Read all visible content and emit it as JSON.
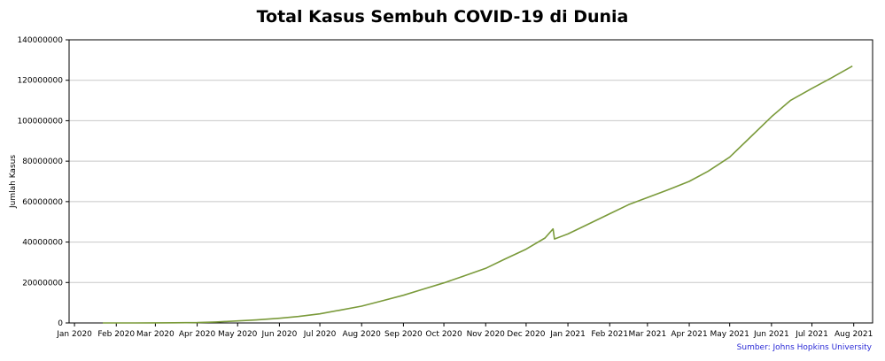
{
  "chart_data": {
    "type": "line",
    "title": "Total Kasus Sembuh COVID-19 di Dunia",
    "ylabel": "Jumlah Kasus",
    "xlabel": "",
    "source": "Sumber: Johns Hopkins University",
    "ylim": [
      0,
      140000000
    ],
    "yticks": [
      0,
      20000000,
      40000000,
      60000000,
      80000000,
      100000000,
      120000000,
      140000000
    ],
    "xlim": [
      "2019-12-28",
      "2021-08-15"
    ],
    "xticks": [
      {
        "date": "2020-01-01",
        "label": "Jan 2020"
      },
      {
        "date": "2020-02-01",
        "label": "Feb 2020"
      },
      {
        "date": "2020-03-01",
        "label": "Mar 2020"
      },
      {
        "date": "2020-04-01",
        "label": "Apr 2020"
      },
      {
        "date": "2020-05-01",
        "label": "May 2020"
      },
      {
        "date": "2020-06-01",
        "label": "Jun 2020"
      },
      {
        "date": "2020-07-01",
        "label": "Jul 2020"
      },
      {
        "date": "2020-08-01",
        "label": "Aug 2020"
      },
      {
        "date": "2020-09-01",
        "label": "Sep 2020"
      },
      {
        "date": "2020-10-01",
        "label": "Oct 2020"
      },
      {
        "date": "2020-11-01",
        "label": "Nov 2020"
      },
      {
        "date": "2020-12-01",
        "label": "Dec 2020"
      },
      {
        "date": "2021-01-01",
        "label": "Jan 2021"
      },
      {
        "date": "2021-02-01",
        "label": "Feb 2021"
      },
      {
        "date": "2021-03-01",
        "label": "Mar 2021"
      },
      {
        "date": "2021-04-01",
        "label": "Apr 2021"
      },
      {
        "date": "2021-05-01",
        "label": "May 2021"
      },
      {
        "date": "2021-06-01",
        "label": "Jun 2021"
      },
      {
        "date": "2021-07-01",
        "label": "Jul 2021"
      },
      {
        "date": "2021-08-01",
        "label": "Aug 2021"
      }
    ],
    "grid": "horizontal",
    "line_color": "#7a9a3a",
    "series": [
      {
        "values": [
          {
            "x": "2020-01-22",
            "y": 28
          },
          {
            "x": "2020-02-15",
            "y": 10000
          },
          {
            "x": "2020-03-01",
            "y": 45000
          },
          {
            "x": "2020-03-15",
            "y": 80000
          },
          {
            "x": "2020-04-01",
            "y": 190000
          },
          {
            "x": "2020-04-15",
            "y": 500000
          },
          {
            "x": "2020-05-01",
            "y": 1000000
          },
          {
            "x": "2020-05-15",
            "y": 1500000
          },
          {
            "x": "2020-06-01",
            "y": 2300000
          },
          {
            "x": "2020-06-15",
            "y": 3200000
          },
          {
            "x": "2020-07-01",
            "y": 4500000
          },
          {
            "x": "2020-07-15",
            "y": 6200000
          },
          {
            "x": "2020-08-01",
            "y": 8300000
          },
          {
            "x": "2020-08-15",
            "y": 10700000
          },
          {
            "x": "2020-09-01",
            "y": 13700000
          },
          {
            "x": "2020-09-15",
            "y": 16600000
          },
          {
            "x": "2020-10-01",
            "y": 19800000
          },
          {
            "x": "2020-10-15",
            "y": 23000000
          },
          {
            "x": "2020-11-01",
            "y": 27000000
          },
          {
            "x": "2020-11-15",
            "y": 31500000
          },
          {
            "x": "2020-12-01",
            "y": 36500000
          },
          {
            "x": "2020-12-15",
            "y": 42000000
          },
          {
            "x": "2020-12-21",
            "y": 46500000
          },
          {
            "x": "2020-12-22",
            "y": 41500000
          },
          {
            "x": "2021-01-01",
            "y": 44000000
          },
          {
            "x": "2021-01-15",
            "y": 48500000
          },
          {
            "x": "2021-02-01",
            "y": 54000000
          },
          {
            "x": "2021-02-15",
            "y": 58500000
          },
          {
            "x": "2021-03-01",
            "y": 62000000
          },
          {
            "x": "2021-03-15",
            "y": 65500000
          },
          {
            "x": "2021-04-01",
            "y": 70000000
          },
          {
            "x": "2021-04-15",
            "y": 75000000
          },
          {
            "x": "2021-05-01",
            "y": 82000000
          },
          {
            "x": "2021-05-15",
            "y": 91000000
          },
          {
            "x": "2021-06-01",
            "y": 102000000
          },
          {
            "x": "2021-06-15",
            "y": 110000000
          },
          {
            "x": "2021-07-01",
            "y": 116000000
          },
          {
            "x": "2021-07-15",
            "y": 121000000
          },
          {
            "x": "2021-07-31",
            "y": 127000000
          }
        ]
      }
    ]
  }
}
